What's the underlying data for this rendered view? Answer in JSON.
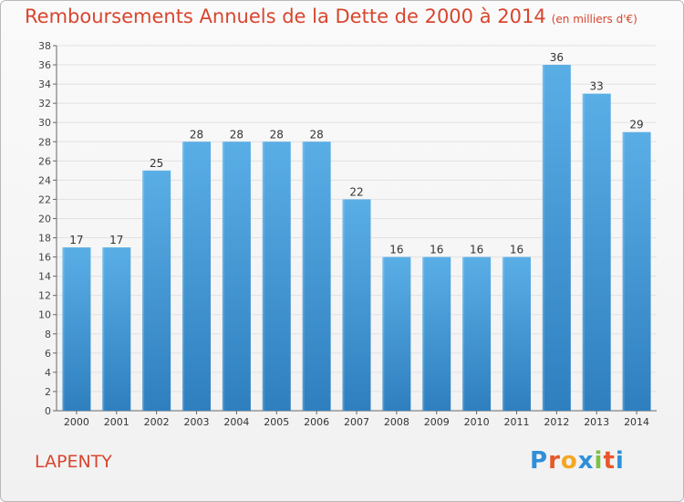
{
  "header": {
    "title": "Remboursements Annuels de la Dette de 2000 à 2014",
    "subtitle": "(en milliers d'€)"
  },
  "footer": {
    "commune": "LAPENTY",
    "logo_text": "Proxiti",
    "logo_colors": [
      "#2f8fd8",
      "#e8562a",
      "#f5a623",
      "#2f8fd8",
      "#7cc242",
      "#e8562a",
      "#2f8fd8"
    ]
  },
  "chart_data": {
    "type": "bar",
    "title": "Remboursements Annuels de la Dette de 2000 à 2014",
    "subtitle": "(en milliers d'€)",
    "categories": [
      "2000",
      "2001",
      "2002",
      "2003",
      "2004",
      "2005",
      "2006",
      "2007",
      "2008",
      "2009",
      "2010",
      "2011",
      "2012",
      "2013",
      "2014"
    ],
    "values": [
      17,
      17,
      25,
      28,
      28,
      28,
      28,
      22,
      16,
      16,
      16,
      16,
      36,
      33,
      29
    ],
    "ylim": [
      0,
      38
    ],
    "yticks": [
      0,
      2,
      4,
      6,
      8,
      10,
      12,
      14,
      16,
      18,
      20,
      22,
      24,
      26,
      28,
      30,
      32,
      34,
      36,
      38
    ],
    "grid": true,
    "bar_color_top": "#5aaee6",
    "bar_color_bottom": "#2f7fbf"
  }
}
